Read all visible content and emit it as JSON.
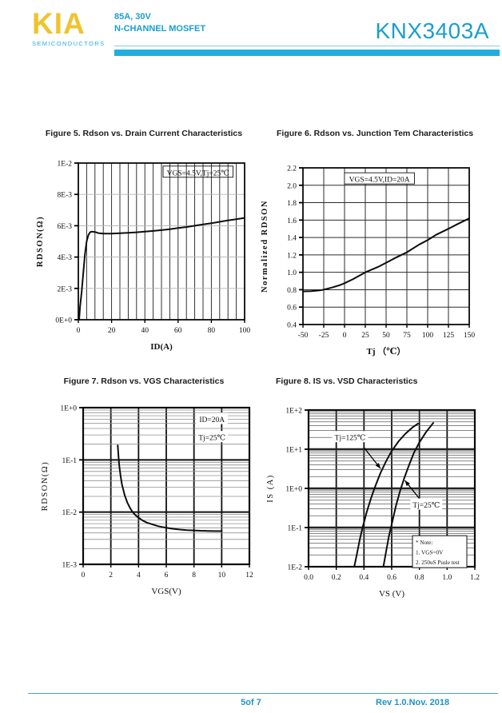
{
  "header": {
    "logo_text": "KIA",
    "logo_subtext": "SEMICONDUCTORS",
    "rating_line": "85A, 30V",
    "device_type": "N-CHANNEL MOSFET",
    "part_number": "KNX3403A"
  },
  "colors": {
    "brand_yellow": "#F0C32E",
    "brand_cyan": "#1B9ECF",
    "header_bar_cyan": "#22ACDF",
    "chart_ink": "#111111",
    "light_grid": "#B3B3B3"
  },
  "footer": {
    "page_indicator": "5of 7",
    "revision": "Rev 1.0.Nov. 2018"
  },
  "chart_data": [
    {
      "id": "fig5",
      "type": "line",
      "title": "Figure 5. Rdson vs. Drain Current Characteristics",
      "xlabel": "ID(A)",
      "ylabel": "RDSON(Ω)",
      "x": {
        "scale": "linear",
        "min": 0,
        "max": 100,
        "grid_step": 5,
        "ticks": [
          "0",
          "20",
          "40",
          "60",
          "80",
          "100"
        ],
        "tick_values": [
          0,
          20,
          40,
          60,
          80,
          100
        ]
      },
      "y": {
        "scale": "linear",
        "min": 0,
        "max": 0.01,
        "grid_step": 0.002,
        "ticks": [
          "0E+0",
          "2E-3",
          "4E-3",
          "6E-3",
          "8E-3",
          "1E-2"
        ],
        "tick_values": [
          0,
          0.002,
          0.004,
          0.006,
          0.008,
          0.01
        ]
      },
      "series": [
        {
          "name": "RDSON",
          "points": [
            [
              0.5,
              0
            ],
            [
              1,
              0.0008
            ],
            [
              2,
              0.0018
            ],
            [
              3,
              0.003
            ],
            [
              4,
              0.0042
            ],
            [
              5,
              0.005
            ],
            [
              6,
              0.0054
            ],
            [
              7,
              0.00558
            ],
            [
              8,
              0.00562
            ],
            [
              10,
              0.0056
            ],
            [
              12,
              0.00553
            ],
            [
              15,
              0.0055
            ],
            [
              20,
              0.0055
            ],
            [
              25,
              0.00552
            ],
            [
              30,
              0.00555
            ],
            [
              35,
              0.00558
            ],
            [
              40,
              0.00562
            ],
            [
              45,
              0.00567
            ],
            [
              50,
              0.00572
            ],
            [
              55,
              0.00578
            ],
            [
              60,
              0.00585
            ],
            [
              65,
              0.00592
            ],
            [
              70,
              0.006
            ],
            [
              75,
              0.00608
            ],
            [
              80,
              0.00616
            ],
            [
              85,
              0.00625
            ],
            [
              90,
              0.00634
            ],
            [
              95,
              0.00642
            ],
            [
              100,
              0.0065
            ]
          ]
        }
      ],
      "annotations": [
        {
          "text": "VGS=4.5V,Tj=25℃",
          "x": 72,
          "y": 0.0094,
          "boxed": true
        }
      ]
    },
    {
      "id": "fig6",
      "type": "line",
      "title": "Figure 6. Rdson vs. Junction Tem Characteristics",
      "xlabel": "Tj （℃）",
      "ylabel": "Normalized RDSON",
      "x": {
        "scale": "linear",
        "min": -50,
        "max": 150,
        "grid_step": 25,
        "ticks": [
          "-50",
          "-25",
          "0",
          "25",
          "50",
          "75",
          "100",
          "125",
          "150"
        ],
        "tick_values": [
          -50,
          -25,
          0,
          25,
          50,
          75,
          100,
          125,
          150
        ]
      },
      "y": {
        "scale": "linear",
        "min": 0.4,
        "max": 2.2,
        "grid_step": 0.2,
        "ticks": [
          "0.4",
          "0.6",
          "0.8",
          "1.0",
          "1.2",
          "1.4",
          "1.6",
          "1.8",
          "2.0",
          "2.2"
        ],
        "tick_values": [
          0.4,
          0.6,
          0.8,
          1.0,
          1.2,
          1.4,
          1.6,
          1.8,
          2.0,
          2.2
        ]
      },
      "series": [
        {
          "name": "Normalized RDSON",
          "points": [
            [
              -50,
              0.78
            ],
            [
              -40,
              0.784
            ],
            [
              -30,
              0.792
            ],
            [
              -25,
              0.8
            ],
            [
              -15,
              0.825
            ],
            [
              -5,
              0.855
            ],
            [
              0,
              0.875
            ],
            [
              10,
              0.92
            ],
            [
              25,
              1.0
            ],
            [
              40,
              1.06
            ],
            [
              50,
              1.11
            ],
            [
              60,
              1.16
            ],
            [
              75,
              1.23
            ],
            [
              90,
              1.32
            ],
            [
              100,
              1.37
            ],
            [
              110,
              1.43
            ],
            [
              125,
              1.5
            ],
            [
              135,
              1.55
            ],
            [
              150,
              1.62
            ]
          ]
        }
      ],
      "annotations": [
        {
          "text": "VGS=4.5V,ID=20A",
          "x": 42,
          "y": 2.07,
          "boxed": true,
          "bg": true
        }
      ]
    },
    {
      "id": "fig7",
      "type": "line",
      "title": "Figure 7. Rdson vs. VGS Characteristics",
      "xlabel": "VGS(V)",
      "ylabel": "RDSON(Ω)",
      "x": {
        "scale": "linear",
        "min": 0,
        "max": 12,
        "grid_step": 2,
        "ticks": [
          "0",
          "2",
          "4",
          "6",
          "8",
          "10",
          "12"
        ],
        "tick_values": [
          0,
          2,
          4,
          6,
          8,
          10,
          12
        ]
      },
      "y": {
        "scale": "log",
        "min": 0.001,
        "max": 1,
        "ticks": [
          "1E+0",
          "1E-1",
          "1E-2",
          "1E-3"
        ],
        "tick_values": [
          1,
          0.1,
          0.01,
          0.001
        ]
      },
      "series": [
        {
          "name": "RDSON",
          "points": [
            [
              2.5,
              0.19
            ],
            [
              2.55,
              0.12
            ],
            [
              2.6,
              0.08
            ],
            [
              2.7,
              0.05
            ],
            [
              2.8,
              0.034
            ],
            [
              3.0,
              0.021
            ],
            [
              3.2,
              0.015
            ],
            [
              3.4,
              0.0118
            ],
            [
              3.6,
              0.0098
            ],
            [
              3.8,
              0.0086
            ],
            [
              4.0,
              0.0078
            ],
            [
              4.3,
              0.0069
            ],
            [
              4.6,
              0.0063
            ],
            [
              5.0,
              0.0058
            ],
            [
              5.4,
              0.0054
            ],
            [
              6.0,
              0.005
            ],
            [
              6.5,
              0.00478
            ],
            [
              7.0,
              0.00463
            ],
            [
              7.5,
              0.00452
            ],
            [
              8.0,
              0.00445
            ],
            [
              8.5,
              0.0044
            ],
            [
              9.0,
              0.00437
            ],
            [
              9.5,
              0.00434
            ],
            [
              10.0,
              0.00432
            ]
          ]
        }
      ],
      "annotations": [
        {
          "text": "ID=20A",
          "x": 9.3,
          "y": 0.6,
          "bg": true
        },
        {
          "text": "Tj=25℃",
          "x": 9.3,
          "y": 0.27,
          "bg": true
        }
      ]
    },
    {
      "id": "fig8",
      "type": "line",
      "title": "Figure 8. IS vs. VSD Characteristics",
      "xlabel": "VS (V)",
      "ylabel": "IS (A)",
      "x": {
        "scale": "linear",
        "min": 0,
        "max": 1.2,
        "grid_step": 0.2,
        "ticks": [
          "0.0",
          "0.2",
          "0.4",
          "0.6",
          "0.8",
          "1.0",
          "1.2"
        ],
        "tick_values": [
          0,
          0.2,
          0.4,
          0.6,
          0.8,
          1.0,
          1.2
        ]
      },
      "y": {
        "scale": "log",
        "min": 0.01,
        "max": 100,
        "ticks": [
          "1E+2",
          "1E+1",
          "1E+0",
          "1E-1",
          "1E-2"
        ],
        "tick_values": [
          100,
          10,
          1,
          0.1,
          0.01
        ]
      },
      "series": [
        {
          "name": "Tj=125℃",
          "points": [
            [
              0.33,
              0.01
            ],
            [
              0.35,
              0.022
            ],
            [
              0.37,
              0.05
            ],
            [
              0.39,
              0.1
            ],
            [
              0.42,
              0.25
            ],
            [
              0.45,
              0.55
            ],
            [
              0.48,
              1.1
            ],
            [
              0.52,
              2.5
            ],
            [
              0.56,
              5
            ],
            [
              0.6,
              9
            ],
            [
              0.65,
              16
            ],
            [
              0.7,
              25
            ],
            [
              0.75,
              36
            ],
            [
              0.79,
              45
            ]
          ]
        },
        {
          "name": "Tj=25℃",
          "points": [
            [
              0.54,
              0.01
            ],
            [
              0.56,
              0.025
            ],
            [
              0.58,
              0.06
            ],
            [
              0.6,
              0.12
            ],
            [
              0.63,
              0.35
            ],
            [
              0.66,
              0.85
            ],
            [
              0.69,
              1.8
            ],
            [
              0.72,
              3.5
            ],
            [
              0.76,
              8
            ],
            [
              0.8,
              15
            ],
            [
              0.85,
              28
            ],
            [
              0.9,
              47
            ]
          ]
        }
      ],
      "annotations": [
        {
          "text": "Tj=125℃",
          "x": 0.3,
          "y": 20,
          "bg": true,
          "arrow": {
            "from": {
              "x": 0.4,
              "y": 11
            },
            "to": {
              "x": 0.52,
              "y": 3.2
            }
          }
        },
        {
          "text": "Tj=25℃",
          "x": 0.85,
          "y": 0.38,
          "bg": true,
          "arrow": {
            "from": {
              "x": 0.8,
              "y": 0.55
            },
            "to": {
              "x": 0.695,
              "y": 1.6
            }
          }
        }
      ],
      "note_box": {
        "lines": [
          "* Note:",
          "1. VGS=0V",
          "2. 250uS Pusle test"
        ],
        "x": 0.75,
        "y": 0.062
      }
    }
  ]
}
